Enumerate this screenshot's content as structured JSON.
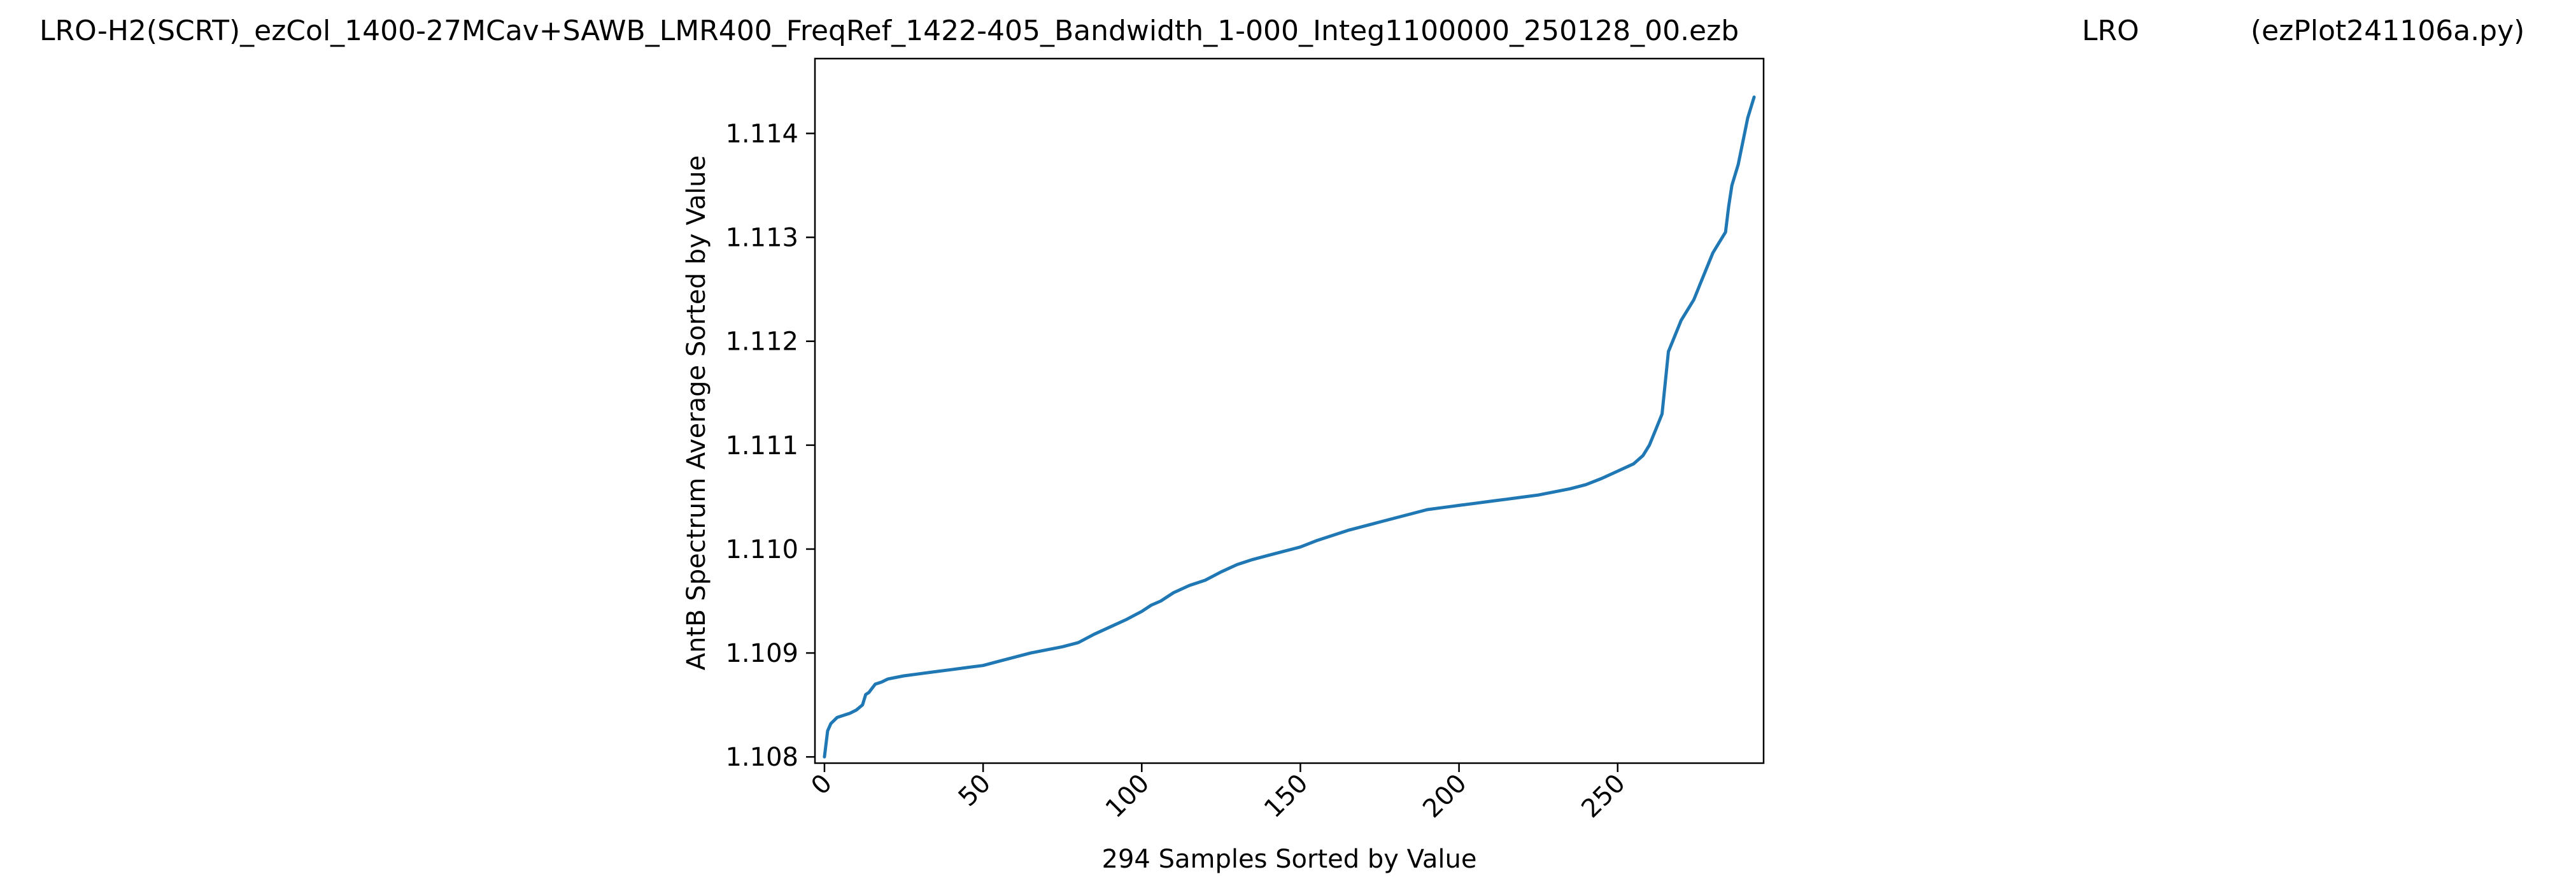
{
  "chart_data": {
    "type": "line",
    "title_parts": {
      "file": "LRO-H2(SCRT)_ezCol_1400-27MCav+SAWB_LMR400_FreqRef_1422-405_Bandwidth_1-000_Integ1100000_250128_00.ezb",
      "site": "LRO",
      "program": "(ezPlot241106a.py)"
    },
    "xlabel": "294 Samples Sorted by Value",
    "ylabel": "AntB Spectrum Average Sorted by Value",
    "xlim": [
      -3,
      296
    ],
    "ylim": [
      1.10794,
      1.11472
    ],
    "x_ticks": [
      0,
      50,
      100,
      150,
      200,
      250
    ],
    "x_tick_labels": [
      "0",
      "50",
      "100",
      "150",
      "200",
      "250"
    ],
    "y_ticks": [
      1.108,
      1.109,
      1.11,
      1.111,
      1.112,
      1.113,
      1.114
    ],
    "y_tick_labels": [
      "1.108",
      "1.109",
      "1.110",
      "1.111",
      "1.112",
      "1.113",
      "1.114"
    ],
    "grid": false,
    "legend": "none",
    "series": [
      {
        "color": "#1f77b4",
        "x": [
          0,
          1,
          2,
          4,
          6,
          8,
          10,
          12,
          13,
          14,
          15,
          16,
          18,
          20,
          25,
          30,
          35,
          40,
          45,
          50,
          55,
          60,
          65,
          70,
          75,
          80,
          85,
          90,
          95,
          100,
          103,
          106,
          110,
          115,
          120,
          125,
          130,
          135,
          140,
          145,
          150,
          155,
          160,
          165,
          170,
          175,
          180,
          185,
          190,
          195,
          200,
          205,
          210,
          215,
          220,
          225,
          230,
          235,
          240,
          245,
          250,
          255,
          258,
          260,
          262,
          264,
          265,
          266,
          268,
          270,
          272,
          274,
          276,
          278,
          280,
          282,
          284,
          285,
          286,
          288,
          289,
          290,
          291,
          292,
          293
        ],
        "values": [
          1.108,
          1.10825,
          1.10832,
          1.10838,
          1.1084,
          1.10842,
          1.10845,
          1.1085,
          1.1086,
          1.10862,
          1.10866,
          1.1087,
          1.10872,
          1.10875,
          1.10878,
          1.1088,
          1.10882,
          1.10884,
          1.10886,
          1.10888,
          1.10892,
          1.10896,
          1.109,
          1.10903,
          1.10906,
          1.1091,
          1.10918,
          1.10925,
          1.10932,
          1.1094,
          1.10946,
          1.1095,
          1.10958,
          1.10965,
          1.1097,
          1.10978,
          1.10985,
          1.1099,
          1.10994,
          1.10998,
          1.11002,
          1.11008,
          1.11013,
          1.11018,
          1.11022,
          1.11026,
          1.1103,
          1.11034,
          1.11038,
          1.1104,
          1.11042,
          1.11044,
          1.11046,
          1.11048,
          1.1105,
          1.11052,
          1.11055,
          1.11058,
          1.11062,
          1.11068,
          1.11075,
          1.11082,
          1.1109,
          1.111,
          1.11115,
          1.1113,
          1.1116,
          1.1119,
          1.11205,
          1.1122,
          1.1123,
          1.1124,
          1.11255,
          1.1127,
          1.11285,
          1.11295,
          1.11305,
          1.1133,
          1.1135,
          1.1137,
          1.11385,
          1.114,
          1.11415,
          1.11425,
          1.11435
        ]
      }
    ]
  }
}
